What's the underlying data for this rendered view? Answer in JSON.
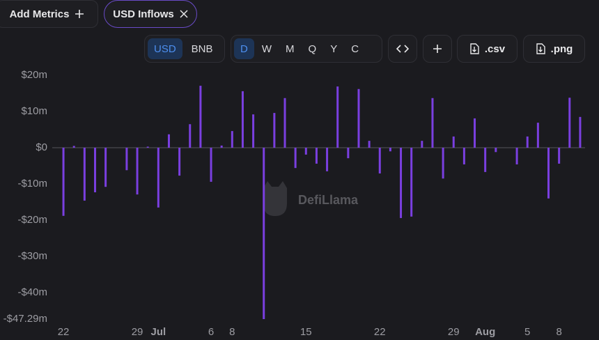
{
  "toolbar": {
    "add_metrics": "Add Metrics",
    "metric_tag": "USD Inflows",
    "denominations": [
      "USD",
      "BNB"
    ],
    "groupings": [
      "D",
      "W",
      "M",
      "Q",
      "Y",
      "C"
    ],
    "csv": ".csv",
    "png": ".png"
  },
  "watermark": "DefiLlama",
  "chart_data": {
    "type": "bar",
    "color": "#7a3fe0",
    "grid": false,
    "categories": [
      "22",
      null,
      null,
      null,
      null,
      null,
      null,
      "29",
      null,
      "Jul",
      null,
      null,
      null,
      null,
      "6",
      null,
      "8",
      null,
      null,
      null,
      null,
      null,
      null,
      "15",
      null,
      null,
      null,
      null,
      null,
      null,
      "22",
      null,
      null,
      null,
      null,
      null,
      null,
      "29",
      null,
      null,
      "Aug",
      null,
      null,
      null,
      "5",
      null,
      null,
      "8",
      null,
      null
    ],
    "values": [
      -18.8,
      0.5,
      -14.6,
      -12.3,
      -10.8,
      0,
      -6.2,
      -12.9,
      0.3,
      -16.5,
      3.7,
      -7.7,
      6.5,
      17.1,
      -9.4,
      0.6,
      4.6,
      15.6,
      9.2,
      -47.29,
      9.6,
      13.7,
      -5.6,
      -1.9,
      -4.4,
      -6.5,
      16.9,
      -2.9,
      16.2,
      1.9,
      -7.1,
      -1.0,
      -19.4,
      -19.0,
      1.9,
      13.7,
      -8.5,
      3.1,
      -4.6,
      8.1,
      -6.7,
      -1.2,
      0,
      -4.6,
      3.1,
      6.9,
      -14.0,
      -4.4,
      13.8,
      8.5
    ],
    "ylim": [
      -47.29,
      22.5
    ],
    "yticks": [
      {
        "value": 20,
        "label": "$20m"
      },
      {
        "value": 10,
        "label": "$10m"
      },
      {
        "value": 0,
        "label": "$0"
      },
      {
        "value": -10,
        "label": "-$10m"
      },
      {
        "value": -20,
        "label": "-$20m"
      },
      {
        "value": -30,
        "label": "-$30m"
      },
      {
        "value": -40,
        "label": "-$40m"
      },
      {
        "value": -47.29,
        "label": "-$47.29m"
      }
    ]
  }
}
